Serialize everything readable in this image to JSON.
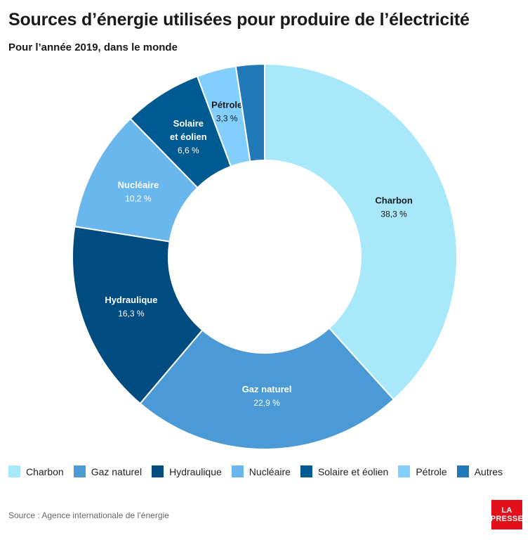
{
  "title": "Sources d’énergie utilisées pour produire de l’électricité",
  "subtitle": "Pour l’année 2019, dans le monde",
  "source": "Source : Agence internationale de l’énergie",
  "logo": {
    "line1": "LA",
    "line2": "PRESSE"
  },
  "chart_data": {
    "type": "pie",
    "donut": true,
    "legend_position": "bottom",
    "slices": [
      {
        "label": "Charbon",
        "value": 38.3,
        "value_text": "38,3 %",
        "color": "#a8e8fb",
        "label_color": "#1a1a1a"
      },
      {
        "label": "Gaz naturel",
        "value": 22.9,
        "value_text": "22,9 %",
        "color": "#4b9ad6",
        "label_color": "#ffffff"
      },
      {
        "label": "Hydraulique",
        "value": 16.3,
        "value_text": "16,3 %",
        "color": "#004c80",
        "label_color": "#ffffff"
      },
      {
        "label": "Nucléaire",
        "value": 10.2,
        "value_text": "10,2 %",
        "color": "#6ab7ee",
        "label_color": "#ffffff"
      },
      {
        "label": "Solaire et éolien",
        "value": 6.6,
        "value_text": "6,6 %",
        "color": "#005a92",
        "label_color": "#ffffff"
      },
      {
        "label": "Pétrole",
        "value": 3.3,
        "value_text": "3,3 %",
        "color": "#82cefc",
        "label_color": "#1a1a1a"
      },
      {
        "label": "Autres",
        "value": 2.4,
        "value_text": "",
        "color": "#2179b8",
        "label_color": "#ffffff"
      }
    ]
  }
}
